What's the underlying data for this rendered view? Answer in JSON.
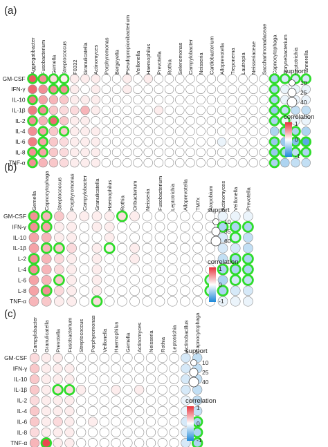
{
  "chart_data": [
    {
      "type": "heatmap",
      "panel": "(a)",
      "columns": [
        "Aggregatibacter",
        "Fusobacterium",
        "Gemella",
        "Streptococcus",
        "F0332",
        "Granulicatella",
        "Actinomyces",
        "Porphyromonas",
        "Bergeyella",
        "Pseudopropionibacterium",
        "Veillonella",
        "Haemophilus",
        "Prevotella",
        "Rothia",
        "Selenomonas",
        "Campylobacter",
        "Neisseria",
        "Cardiobacterium",
        "Alloprevotella",
        "Treponema",
        "Lautropia",
        "Neisseriaceae",
        "Saccharimonadaceae",
        "Capnocytophaga",
        "Corynebacterium",
        "Leptotrichia",
        "Tannerella"
      ],
      "rows": [
        "GM-CSF",
        "IFN-γ",
        "IL-10",
        "IL-1β",
        "IL-2",
        "IL-4",
        "IL-6",
        "IL-8",
        "TNF-α"
      ],
      "values": [
        [
          0.45,
          0.3,
          0.1,
          0.05,
          0.05,
          0.05,
          0.05,
          0,
          0,
          0.05,
          0,
          0.05,
          0,
          0,
          0,
          0,
          0,
          0,
          0,
          0,
          0,
          0,
          0,
          -0.2,
          -0.1,
          -0.1,
          -0.1
        ],
        [
          0.4,
          0.3,
          0.3,
          0.3,
          0.05,
          0,
          0.05,
          0,
          0,
          0.05,
          0,
          0,
          0,
          0,
          0,
          0,
          0,
          0,
          0,
          0,
          0,
          0,
          0,
          -0.2,
          -0.05,
          -0.05,
          -0.05
        ],
        [
          0.35,
          0.25,
          0.2,
          0.15,
          0.05,
          0.05,
          0.05,
          0,
          0,
          0,
          0,
          0,
          0,
          0,
          0,
          0,
          0,
          0,
          0,
          0,
          0,
          0,
          0,
          -0.2,
          -0.05,
          -0.05,
          -0.05
        ],
        [
          0.35,
          0.3,
          0.15,
          0.1,
          0.1,
          0.2,
          0.05,
          0,
          0,
          0,
          0,
          0,
          0.05,
          0,
          0,
          0,
          0,
          0,
          0,
          0,
          0,
          0,
          0,
          -0.25,
          -0.15,
          -0.15,
          -0.15
        ],
        [
          0.3,
          0.2,
          0.4,
          0.15,
          0.05,
          0.05,
          0,
          0,
          0,
          0,
          0,
          0,
          0,
          0,
          0,
          0,
          0,
          0,
          0,
          0,
          0,
          0,
          0,
          -0.2,
          -0.05,
          -0.05,
          -0.05
        ],
        [
          0.3,
          0.25,
          0.15,
          0.15,
          0.05,
          0.05,
          0.05,
          0,
          0,
          0,
          0,
          0,
          0,
          0,
          0,
          0,
          0,
          0,
          0,
          0,
          0,
          0,
          0,
          -0.2,
          -0.2,
          -0.2,
          -0.2
        ],
        [
          0.35,
          0.25,
          0.15,
          0.1,
          0.05,
          0.05,
          0.05,
          0,
          0,
          0,
          0,
          0,
          0,
          0,
          0,
          0,
          0,
          0,
          -0.05,
          0,
          0,
          0,
          0,
          -0.25,
          -0.25,
          -0.3,
          -0.4
        ],
        [
          0.3,
          0.25,
          0.15,
          0.1,
          0.05,
          0.05,
          0.05,
          0,
          0,
          0,
          0,
          0,
          0,
          0,
          0,
          0,
          0,
          0,
          0,
          0,
          0,
          0,
          0,
          -0.25,
          -0.2,
          -0.15,
          -0.2
        ],
        [
          0.3,
          0.2,
          0.15,
          0.1,
          0.05,
          0.05,
          0.05,
          0,
          0,
          0,
          0,
          0,
          0,
          0,
          0,
          0,
          0,
          0,
          0,
          0,
          0,
          0,
          0,
          -0.2,
          -0.2,
          -0.15,
          -0.15
        ]
      ],
      "highlighted": [
        [
          0,
          0
        ],
        [
          0,
          1
        ],
        [
          0,
          2
        ],
        [
          0,
          3
        ],
        [
          0,
          23
        ],
        [
          0,
          24
        ],
        [
          0,
          25
        ],
        [
          0,
          26
        ],
        [
          1,
          2
        ],
        [
          1,
          3
        ],
        [
          1,
          23
        ],
        [
          2,
          0
        ],
        [
          2,
          23
        ],
        [
          3,
          1
        ],
        [
          3,
          23
        ],
        [
          3,
          24
        ],
        [
          4,
          0
        ],
        [
          4,
          2
        ],
        [
          4,
          23
        ],
        [
          4,
          24
        ],
        [
          5,
          1
        ],
        [
          5,
          3
        ],
        [
          5,
          24
        ],
        [
          5,
          25
        ],
        [
          6,
          1
        ],
        [
          6,
          23
        ],
        [
          6,
          25
        ],
        [
          6,
          26
        ],
        [
          7,
          0
        ],
        [
          7,
          1
        ],
        [
          7,
          23
        ],
        [
          7,
          24
        ],
        [
          7,
          25
        ],
        [
          7,
          26
        ],
        [
          8,
          0
        ],
        [
          8,
          23
        ]
      ],
      "legend": {
        "support_title": "support",
        "support_levels": [
          "10",
          "25",
          "40"
        ],
        "correlation_title": "correlation",
        "ticks": [
          "1",
          "0",
          "-1"
        ]
      },
      "colors": {
        "positive": "#e8343e",
        "negative": "#1e88d8",
        "highlight": "#2edc2a"
      }
    },
    {
      "type": "heatmap",
      "panel": "(b)",
      "columns": [
        "Gemella",
        "Capnocytophaga",
        "Streptococcus",
        "Porphyromonas",
        "Campylobacter",
        "Granulicatella",
        "Haemophilus",
        "Rothia",
        "Oribacterium",
        "Neisseria",
        "Fusobacterium",
        "Leptotrichia",
        "Alloprevotella",
        "TM7x",
        "Atopobium",
        "Actinomyces",
        "Veillonella",
        "Prevotella"
      ],
      "rows": [
        "GM-CSF",
        "IFN-γ",
        "IL-10",
        "IL-1β",
        "L-2",
        "L-4",
        "L-6",
        "L-8",
        "TNF-α"
      ],
      "values": [
        [
          0.3,
          0.2,
          0.15,
          0.05,
          0.05,
          0.05,
          0.05,
          0.1,
          0.05,
          0,
          0,
          0,
          0,
          0,
          0,
          -0.05,
          -0.05,
          -0.05
        ],
        [
          0.3,
          0.25,
          0.05,
          0.05,
          0,
          0.05,
          0.05,
          0,
          0,
          0,
          0,
          0,
          0,
          0,
          0,
          -0.2,
          -0.2,
          -0.2
        ],
        [
          0.25,
          0.2,
          0.05,
          0.05,
          0,
          0,
          0.05,
          0,
          0,
          0,
          0,
          0,
          0,
          0,
          0,
          -0.1,
          -0.1,
          -0.15
        ],
        [
          0.25,
          0.2,
          0.15,
          0.1,
          0,
          0.05,
          0.05,
          0,
          0.05,
          0,
          0,
          0,
          0,
          0,
          0,
          -0.1,
          -0.1,
          -0.15
        ],
        [
          0.3,
          0.2,
          0.1,
          0.05,
          0,
          0.05,
          0,
          0,
          0.05,
          0,
          0,
          0,
          0,
          0,
          0,
          -0.15,
          -0.2,
          -0.2
        ],
        [
          0.3,
          0.2,
          0.1,
          0.05,
          0,
          0.05,
          0,
          0,
          0,
          0,
          0,
          0,
          0,
          0,
          0,
          -0.2,
          -0.2,
          -0.2
        ],
        [
          0.25,
          0.2,
          0.15,
          0.05,
          0,
          0.05,
          0,
          0,
          0,
          0,
          0,
          0,
          0,
          0,
          -0.1,
          -0.2,
          -0.1,
          -0.15
        ],
        [
          0.25,
          0.3,
          0.1,
          0.05,
          0,
          0.05,
          0,
          0,
          0,
          0,
          0,
          0,
          0,
          0,
          -0.1,
          -0.2,
          -0.1,
          -0.1
        ],
        [
          0.2,
          0.15,
          0.05,
          0.05,
          0,
          0.1,
          0,
          0,
          0,
          0,
          0,
          0,
          0,
          0,
          0,
          -0.05,
          -0.05,
          -0.05
        ]
      ],
      "highlighted": [
        [
          0,
          0
        ],
        [
          0,
          1
        ],
        [
          0,
          7
        ],
        [
          1,
          0
        ],
        [
          1,
          1
        ],
        [
          1,
          15
        ],
        [
          1,
          16
        ],
        [
          1,
          17
        ],
        [
          2,
          16
        ],
        [
          3,
          1
        ],
        [
          3,
          2
        ],
        [
          3,
          6
        ],
        [
          4,
          0
        ],
        [
          4,
          16
        ],
        [
          4,
          17
        ],
        [
          5,
          0
        ],
        [
          5,
          15
        ],
        [
          5,
          16
        ],
        [
          5,
          17
        ],
        [
          6,
          2
        ],
        [
          6,
          14
        ],
        [
          6,
          16
        ],
        [
          6,
          17
        ],
        [
          7,
          1
        ],
        [
          7,
          14
        ],
        [
          7,
          15
        ],
        [
          8,
          5
        ]
      ],
      "legend": {
        "support_title": "support",
        "support_levels": [
          "10",
          "35",
          "60"
        ],
        "correlation_title": "correlation",
        "ticks": [
          "1",
          "0",
          "-1"
        ]
      },
      "colors": {
        "positive": "#e8343e",
        "negative": "#1e88d8",
        "highlight": "#2edc2a"
      }
    },
    {
      "type": "heatmap",
      "panel": "(c)",
      "columns": [
        "Campylobacter",
        "Granulicatella",
        "Prevotella",
        "Fusobacterium",
        "Streptococcus",
        "Porphyromonas",
        "Veillonella",
        "Haemophilus",
        "Gemella",
        "Actinomyces",
        "Neisseria",
        "Rothia",
        "Leptotrichia",
        "Actinobacillus",
        "Capnocytophaga"
      ],
      "rows": [
        "GM-CSF",
        "IFN-γ",
        "IL-10",
        "IL-1β",
        "IL-2",
        "IL-4",
        "IL-6",
        "IL-8",
        "TNF-α"
      ],
      "values": [
        [
          0.1,
          0.05,
          0.05,
          0,
          0,
          0,
          0,
          0,
          0,
          0,
          0,
          0,
          0,
          -0.1,
          -0.15
        ],
        [
          0.15,
          0.05,
          0.05,
          0.05,
          0,
          0,
          0,
          0,
          0,
          0,
          0,
          0,
          0,
          -0.1,
          -0.15
        ],
        [
          0.15,
          0.05,
          0.05,
          0.05,
          0,
          0,
          0,
          0,
          0,
          0,
          0,
          0,
          0,
          -0.1,
          -0.15
        ],
        [
          0.15,
          0.05,
          0.1,
          0.1,
          0.05,
          0,
          0,
          0.05,
          0,
          0.05,
          0,
          0,
          0,
          -0.1,
          -0.15
        ],
        [
          0.1,
          0.05,
          0.05,
          0.05,
          0,
          0,
          0,
          0,
          0,
          0,
          0,
          0,
          0,
          -0.05,
          -0.15
        ],
        [
          0.15,
          0.05,
          0.05,
          0.05,
          0,
          0,
          0,
          0,
          0,
          0,
          0,
          0,
          0,
          -0.05,
          -0.15
        ],
        [
          0.15,
          0.05,
          0.1,
          0.05,
          0,
          0.05,
          0,
          0,
          0,
          0,
          0,
          0,
          0,
          -0.1,
          -0.2
        ],
        [
          0.1,
          0.05,
          0.05,
          0.05,
          0,
          0,
          0,
          0,
          0,
          0,
          0,
          0,
          0,
          -0.1,
          -0.2
        ],
        [
          0.2,
          0.5,
          0.05,
          0.05,
          0,
          0,
          0,
          0,
          0,
          0,
          0,
          0,
          0,
          -0.1,
          -0.2
        ]
      ],
      "highlighted": [
        [
          3,
          2
        ],
        [
          3,
          3
        ],
        [
          6,
          14
        ],
        [
          7,
          14
        ],
        [
          8,
          1
        ],
        [
          8,
          14
        ]
      ],
      "legend": {
        "support_title": "support",
        "support_levels": [
          "10",
          "25",
          "40"
        ],
        "correlation_title": "correlation",
        "ticks": [
          "1",
          "0",
          "-1"
        ]
      },
      "colors": {
        "positive": "#e8343e",
        "negative": "#1e88d8",
        "highlight": "#2edc2a"
      }
    }
  ]
}
